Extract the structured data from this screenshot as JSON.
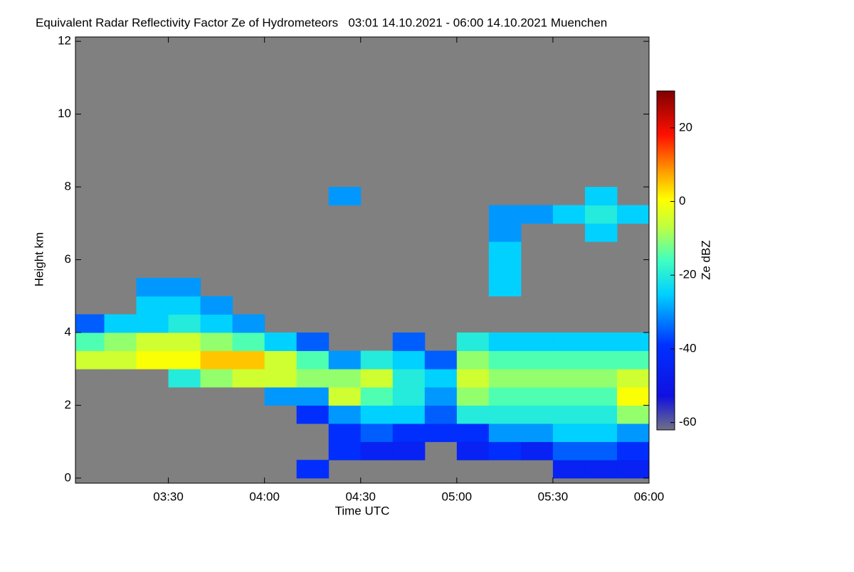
{
  "chart_data": {
    "type": "heatmap",
    "title": "Equivalent Radar Reflectivity Factor Ze of Hydrometeors   03:01 14.10.2021 - 06:00 14.10.2021 Muenchen",
    "x_label": "Time UTC",
    "y_label": "Height km",
    "colorbar_label": "Ze dBZ",
    "xlim": [
      181,
      360
    ],
    "xticks": [
      {
        "value": 210,
        "label": "03:30"
      },
      {
        "value": 240,
        "label": "04:00"
      },
      {
        "value": 270,
        "label": "04:30"
      },
      {
        "value": 300,
        "label": "05:00"
      },
      {
        "value": 330,
        "label": "05:30"
      },
      {
        "value": 360,
        "label": "06:00"
      }
    ],
    "ylim": [
      -0.14,
      12.12
    ],
    "yticks": [
      0,
      2,
      4,
      6,
      8,
      10,
      12
    ],
    "zlim": [
      -62,
      30
    ],
    "zticks": [
      -60,
      -40,
      -20,
      0,
      20
    ],
    "background": "#808080",
    "xbins": [
      181,
      190,
      200,
      210,
      220,
      230,
      240,
      250,
      260,
      270,
      280,
      290,
      300,
      310,
      320,
      330,
      340,
      350,
      360
    ],
    "ybins": [
      0,
      0.5,
      1,
      1.5,
      2,
      2.5,
      3,
      3.5,
      4,
      4.5,
      5,
      5.5,
      6,
      6.5,
      7,
      7.5,
      8,
      8.5,
      9,
      9.5,
      10,
      10.5,
      11,
      11.5,
      12
    ],
    "z": [
      [
        null,
        null,
        null,
        null,
        null,
        null,
        null,
        -40,
        null,
        null,
        null,
        null,
        null,
        null,
        null,
        -45,
        -45,
        -45
      ],
      [
        null,
        null,
        null,
        null,
        null,
        null,
        null,
        null,
        -40,
        -45,
        -45,
        null,
        -45,
        -40,
        -45,
        -35,
        -35,
        -40
      ],
      [
        null,
        null,
        null,
        null,
        null,
        null,
        null,
        null,
        -40,
        -35,
        -40,
        -40,
        -40,
        -30,
        -30,
        -25,
        -25,
        -30
      ],
      [
        null,
        null,
        null,
        null,
        null,
        null,
        null,
        -40,
        -30,
        -25,
        -25,
        -35,
        -20,
        -20,
        -20,
        -20,
        -20,
        -10
      ],
      [
        null,
        null,
        null,
        null,
        null,
        null,
        -30,
        -30,
        -5,
        -15,
        -20,
        -30,
        -10,
        -15,
        -15,
        -15,
        -15,
        0
      ],
      [
        null,
        null,
        null,
        -20,
        -10,
        -5,
        -5,
        -10,
        -10,
        -5,
        -20,
        -25,
        -5,
        -10,
        -10,
        -10,
        -10,
        -5
      ],
      [
        -5,
        -5,
        0,
        0,
        5,
        5,
        -5,
        -15,
        -30,
        -20,
        -25,
        -35,
        -10,
        -15,
        -15,
        -15,
        -15,
        -15
      ],
      [
        -15,
        -10,
        -5,
        -5,
        -10,
        -15,
        -25,
        -35,
        null,
        null,
        -35,
        null,
        -20,
        -25,
        -25,
        -25,
        -25,
        -25
      ],
      [
        -35,
        -25,
        -25,
        -20,
        -25,
        -30,
        null,
        null,
        null,
        null,
        null,
        null,
        null,
        null,
        null,
        null,
        null,
        null
      ],
      [
        null,
        null,
        -25,
        -25,
        -30,
        null,
        null,
        null,
        null,
        null,
        null,
        null,
        null,
        null,
        null,
        null,
        null,
        null
      ],
      [
        null,
        null,
        -30,
        -30,
        null,
        null,
        null,
        null,
        null,
        null,
        null,
        null,
        null,
        -25,
        null,
        null,
        null,
        null
      ],
      [
        null,
        null,
        null,
        null,
        null,
        null,
        null,
        null,
        null,
        null,
        null,
        null,
        null,
        -25,
        null,
        null,
        null,
        null
      ],
      [
        null,
        null,
        null,
        null,
        null,
        null,
        null,
        null,
        null,
        null,
        null,
        null,
        null,
        -25,
        null,
        null,
        null,
        null
      ],
      [
        null,
        null,
        null,
        null,
        null,
        null,
        null,
        null,
        null,
        null,
        null,
        null,
        null,
        -30,
        null,
        null,
        -25,
        null
      ],
      [
        null,
        null,
        null,
        null,
        null,
        null,
        null,
        null,
        null,
        null,
        null,
        null,
        null,
        -30,
        -30,
        -25,
        -20,
        -25
      ],
      [
        null,
        null,
        null,
        null,
        null,
        null,
        null,
        null,
        -30,
        null,
        null,
        null,
        null,
        null,
        null,
        null,
        -25,
        null
      ],
      [
        null,
        null,
        null,
        null,
        null,
        null,
        null,
        null,
        null,
        null,
        null,
        null,
        null,
        null,
        null,
        null,
        null,
        null
      ],
      [
        null,
        null,
        null,
        null,
        null,
        null,
        null,
        null,
        null,
        null,
        null,
        null,
        null,
        null,
        null,
        null,
        null,
        null
      ],
      [
        null,
        null,
        null,
        null,
        null,
        null,
        null,
        null,
        null,
        null,
        null,
        null,
        null,
        null,
        null,
        null,
        null,
        null
      ],
      [
        null,
        null,
        null,
        null,
        null,
        null,
        null,
        null,
        null,
        null,
        null,
        null,
        null,
        null,
        null,
        null,
        null,
        null
      ],
      [
        null,
        null,
        null,
        null,
        null,
        null,
        null,
        null,
        null,
        null,
        null,
        null,
        null,
        null,
        null,
        null,
        null,
        null
      ],
      [
        null,
        null,
        null,
        null,
        null,
        null,
        null,
        null,
        null,
        null,
        null,
        null,
        null,
        null,
        null,
        null,
        null,
        null
      ],
      [
        null,
        null,
        null,
        null,
        null,
        null,
        null,
        null,
        null,
        null,
        null,
        null,
        null,
        null,
        null,
        null,
        null,
        null
      ],
      [
        null,
        null,
        null,
        null,
        null,
        null,
        null,
        null,
        null,
        null,
        null,
        null,
        null,
        null,
        null,
        null,
        null,
        null
      ]
    ]
  }
}
